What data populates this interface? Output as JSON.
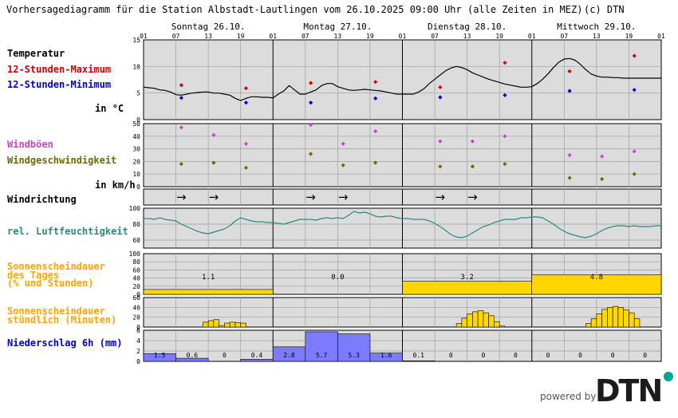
{
  "title": "Vorhersagediagramm für die Station Albstadt-Lautlingen vom 26.10.2025 09:00 Uhr (alle Zeiten in MEZ)",
  "copyright": "(c) DTN",
  "brand": {
    "powered_by": "powered by",
    "logo_text": "DTN",
    "logo_color": "#1c1c1c",
    "dot_color": "#00a39a"
  },
  "days": [
    "Sonntag 26.10.",
    "Montag 27.10.",
    "Dienstag 28.10.",
    "Mittwoch 29.10."
  ],
  "hour_ticks": [
    "01",
    "07",
    "13",
    "19",
    "01",
    "07",
    "13",
    "19",
    "01",
    "07",
    "13",
    "19",
    "01",
    "07",
    "13",
    "19",
    "01"
  ],
  "labels": {
    "temperatur": "Temperatur",
    "max": "12-Stunden-Maximum",
    "min": "12-Stunden-Minimum",
    "temp_unit": "in °C",
    "windboeen": "Windböen",
    "windgeschw": "Windgeschwindigkeit",
    "wind_unit": "in km/h",
    "windrichtung": "Windrichtung",
    "feuchte": "rel. Luftfeuchtigkeit",
    "sonne_tag_1": "Sonnenscheindauer",
    "sonne_tag_2": "des Tages",
    "sonne_tag_3": "(% und Stunden)",
    "sonne_std_1": "Sonnenscheindauer",
    "sonne_std_2": "stündlich (Minuten)",
    "niederschlag": "Niederschlag 6h  (mm)"
  },
  "colors": {
    "panel_bg": "#dcdcdc",
    "grid": "#9e9e9e",
    "temperature_line": "#000000",
    "max": "#e00000",
    "min": "#0000dd",
    "gust": "#cc44cc",
    "wind": "#6b6b00",
    "humidity": "#2a8a80",
    "sun": "#ffd700",
    "rain": "#7b7bff",
    "label_orange": "#ffa500",
    "label_blue": "#0000cc",
    "label_olive": "#6b6b00",
    "label_magenta": "#cc44cc",
    "label_teal": "#2a8a80",
    "label_red": "#d00000"
  },
  "chart_data": {
    "type": "meteogram",
    "x_hours": [
      0,
      96
    ],
    "temperature": {
      "ylim": [
        0,
        15
      ],
      "yticks": [
        "0",
        "5",
        "10",
        "15"
      ],
      "hourly": [
        6.1,
        6.0,
        5.9,
        5.6,
        5.5,
        5.2,
        4.7,
        4.6,
        4.8,
        5.0,
        5.1,
        5.2,
        5.2,
        5.0,
        5.0,
        4.8,
        4.6,
        4.0,
        3.6,
        4.0,
        4.3,
        4.3,
        4.2,
        4.2,
        4.1,
        4.8,
        5.4,
        6.4,
        5.6,
        4.8,
        4.8,
        5.2,
        5.6,
        6.4,
        6.8,
        6.8,
        6.2,
        5.9,
        5.6,
        5.5,
        5.6,
        5.7,
        5.6,
        5.5,
        5.4,
        5.2,
        5.0,
        4.8,
        4.8,
        4.8,
        4.8,
        5.2,
        5.8,
        6.8,
        7.6,
        8.4,
        9.2,
        9.7,
        10.0,
        9.8,
        9.4,
        8.8,
        8.4,
        8.0,
        7.6,
        7.3,
        7.0,
        6.7,
        6.5,
        6.3,
        6.1,
        6.1,
        6.2,
        6.8,
        7.6,
        8.6,
        9.8,
        10.8,
        11.4,
        11.5,
        11.2,
        10.4,
        9.4,
        8.6,
        8.2,
        8.0,
        8.0,
        7.9,
        7.9,
        7.8,
        7.8,
        7.8,
        7.8,
        7.8,
        7.8,
        7.8,
        7.8
      ],
      "max_points": [
        [
          7,
          6.5
        ],
        [
          19,
          5.9
        ],
        [
          31,
          6.9
        ],
        [
          43,
          7.1
        ],
        [
          55,
          6.1
        ],
        [
          67,
          10.7
        ],
        [
          79,
          9.1
        ],
        [
          91,
          12.0
        ]
      ],
      "min_points": [
        [
          7,
          4.1
        ],
        [
          19,
          3.2
        ],
        [
          31,
          3.2
        ],
        [
          43,
          4.0
        ],
        [
          55,
          4.2
        ],
        [
          67,
          4.6
        ],
        [
          79,
          5.4
        ],
        [
          91,
          5.6
        ]
      ]
    },
    "wind": {
      "ylim": [
        0,
        50
      ],
      "yticks": [
        "0",
        "10",
        "20",
        "30",
        "40",
        "50"
      ],
      "gust_points": [
        [
          7,
          47
        ],
        [
          13,
          41
        ],
        [
          19,
          34
        ],
        [
          31,
          49
        ],
        [
          37,
          34
        ],
        [
          43,
          44
        ],
        [
          55,
          36
        ],
        [
          61,
          36
        ],
        [
          67,
          40
        ],
        [
          79,
          25
        ],
        [
          85,
          24
        ],
        [
          91,
          28
        ]
      ],
      "speed_points": [
        [
          7,
          18
        ],
        [
          13,
          19
        ],
        [
          19,
          15
        ],
        [
          31,
          26
        ],
        [
          37,
          17
        ],
        [
          43,
          19
        ],
        [
          55,
          16
        ],
        [
          61,
          16
        ],
        [
          67,
          18
        ],
        [
          79,
          7
        ],
        [
          85,
          6
        ],
        [
          91,
          10
        ]
      ]
    },
    "wind_direction": {
      "arrows": [
        [
          7,
          "→"
        ],
        [
          13,
          "→"
        ],
        [
          31,
          "→"
        ],
        [
          37,
          "→"
        ],
        [
          55,
          "→"
        ],
        [
          61,
          "→"
        ]
      ]
    },
    "humidity": {
      "ylim": [
        50,
        100
      ],
      "yticks": [
        "60",
        "80",
        "100"
      ],
      "hourly": [
        87,
        87,
        86,
        88,
        86,
        85,
        84,
        80,
        77,
        74,
        71,
        69,
        68,
        70,
        72,
        74,
        78,
        84,
        88,
        86,
        84,
        83,
        83,
        82,
        82,
        81,
        80,
        82,
        84,
        86,
        86,
        86,
        85,
        87,
        88,
        87,
        88,
        87,
        91,
        96,
        94,
        95,
        93,
        90,
        89,
        90,
        90,
        88,
        87,
        87,
        86,
        86,
        86,
        84,
        81,
        77,
        72,
        67,
        64,
        63,
        65,
        69,
        73,
        77,
        79,
        82,
        84,
        86,
        86,
        86,
        88,
        88,
        89,
        89,
        88,
        84,
        80,
        75,
        71,
        68,
        66,
        64,
        63,
        65,
        68,
        72,
        75,
        77,
        78,
        78,
        77,
        78,
        77,
        77,
        77,
        78,
        78
      ]
    },
    "sunshine_daily": {
      "ylim": [
        0,
        100
      ],
      "yticks": [
        "0",
        "20",
        "40",
        "60",
        "80",
        "100"
      ],
      "percent": [
        12,
        0,
        32,
        48
      ],
      "hours": [
        "1.1",
        "0.0",
        "3.2",
        "4.8"
      ]
    },
    "sunshine_hourly": {
      "ylim": [
        0,
        60
      ],
      "yticks": [
        "0",
        "20",
        "40",
        "60"
      ],
      "minutes": [
        0,
        0,
        0,
        0,
        0,
        0,
        0,
        0,
        0,
        0,
        0,
        10,
        13,
        15,
        3,
        8,
        10,
        9,
        8,
        0,
        0,
        0,
        0,
        0,
        0,
        0,
        0,
        0,
        0,
        0,
        0,
        0,
        0,
        0,
        0,
        0,
        0,
        0,
        0,
        0,
        0,
        0,
        0,
        0,
        0,
        0,
        0,
        0,
        0,
        0,
        0,
        0,
        0,
        0,
        0,
        0,
        0,
        0,
        7,
        18,
        27,
        31,
        33,
        29,
        23,
        11,
        2,
        0,
        0,
        0,
        0,
        0,
        0,
        0,
        0,
        0,
        0,
        0,
        0,
        0,
        0,
        0,
        7,
        17,
        27,
        36,
        40,
        42,
        40,
        35,
        29,
        17,
        0,
        0,
        0,
        0
      ]
    },
    "precipitation": {
      "ylim": [
        0,
        6
      ],
      "yticks": [
        "0",
        "2",
        "4",
        "6"
      ],
      "values": [
        1.5,
        0.6,
        0,
        0.4,
        2.8,
        5.7,
        5.3,
        1.6,
        0.1,
        0,
        0,
        0,
        0,
        0,
        0,
        0
      ],
      "labels": [
        "1.5",
        "0.6",
        "0",
        "0.4",
        "2.8",
        "5.7",
        "5.3",
        "1.6",
        "0.1",
        "0",
        "0",
        "0",
        "0",
        "0",
        "0",
        "0"
      ]
    }
  }
}
